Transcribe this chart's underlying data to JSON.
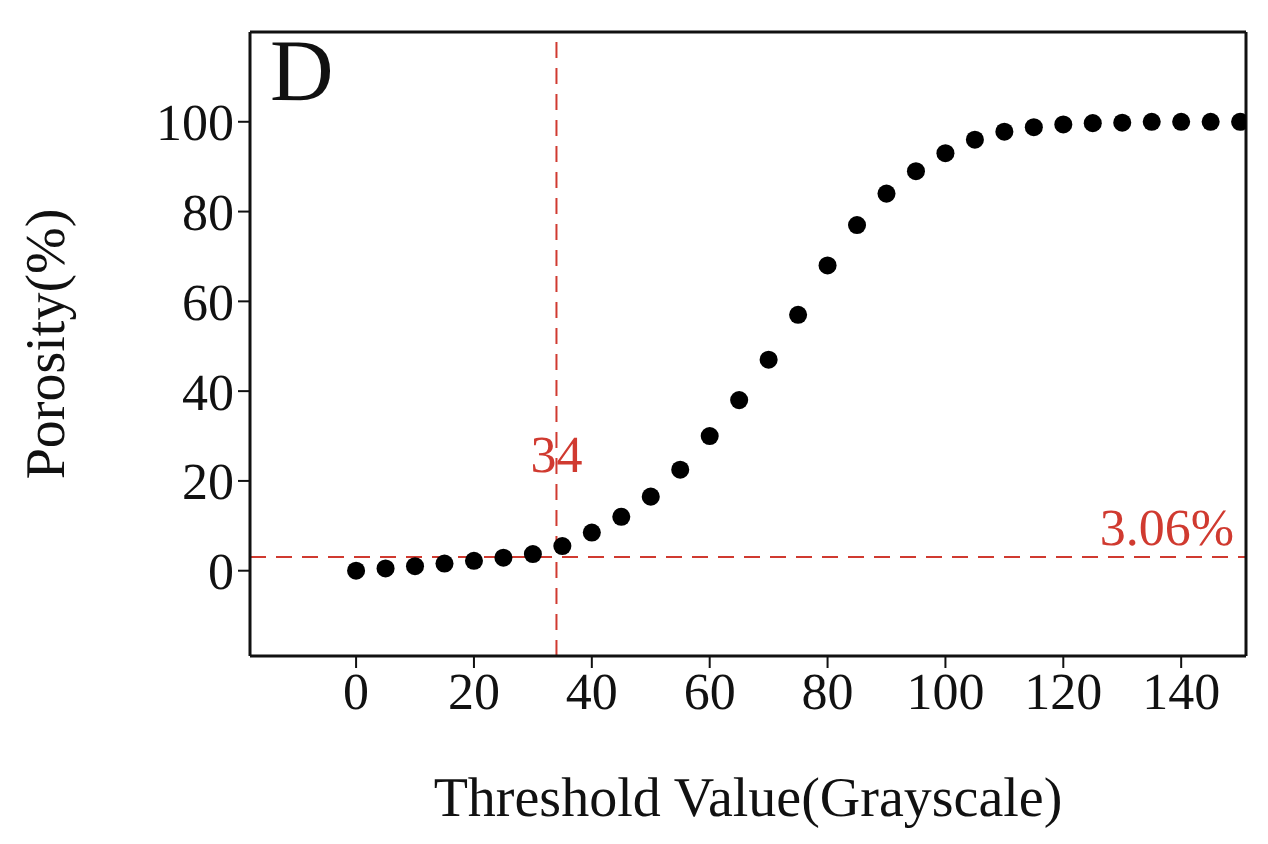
{
  "chart_data": {
    "type": "scatter",
    "xlabel": "Threshold Value(Grayscale)",
    "ylabel": "Porosity(%)",
    "annotations": [
      "D"
    ],
    "x": [
      0,
      5,
      10,
      15,
      20,
      25,
      30,
      35,
      40,
      45,
      50,
      55,
      60,
      65,
      70,
      75,
      80,
      85,
      90,
      95,
      100,
      105,
      110,
      115,
      120,
      125,
      130,
      135,
      140,
      145,
      150
    ],
    "series": [
      {
        "color": "#000000",
        "values": [
          0,
          0.5,
          1,
          1.6,
          2.2,
          2.9,
          3.7,
          5.5,
          8.5,
          12,
          16.5,
          22.5,
          30,
          38,
          47,
          57,
          68,
          77,
          84,
          89,
          93,
          96,
          97.8,
          98.8,
          99.4,
          99.7,
          99.8,
          100,
          100,
          100,
          100
        ]
      }
    ],
    "marker": "circle",
    "grid": false,
    "legend": false,
    "xlim": [
      -18,
      151
    ],
    "xticks": [
      0,
      20,
      40,
      60,
      80,
      100,
      120,
      140
    ],
    "ylim": [
      -19,
      120
    ],
    "yticks": [
      0,
      20,
      40,
      60,
      80,
      100
    ],
    "ref_lines": [
      {
        "axis": "x",
        "value": 34,
        "label": "34",
        "color": "#d03a30",
        "line_style": "dashed"
      },
      {
        "axis": "y",
        "value": 3.06,
        "label": "3.06%",
        "color": "#d03a30",
        "line_style": "dashed"
      }
    ]
  }
}
